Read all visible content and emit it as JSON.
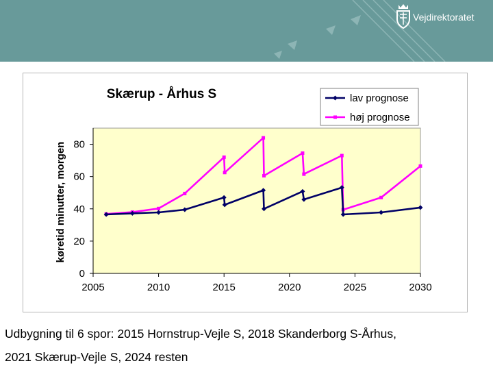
{
  "header": {
    "brand": "Vejdirektoratet",
    "logo_icon": "crown-shield-icon",
    "background_color": "#689a9a"
  },
  "chart_data": {
    "type": "line",
    "title": "Skærup - Århus S",
    "ylabel": "køretid minutter, morgen",
    "xlabel": "",
    "xlim": [
      2005,
      2030
    ],
    "ylim": [
      0,
      90
    ],
    "x_ticks": [
      "2005",
      "2010",
      "2015",
      "2020",
      "2025",
      "2030"
    ],
    "y_ticks": [
      "0",
      "20",
      "40",
      "60",
      "80"
    ],
    "grid": false,
    "legend_position": "top-right",
    "plot_background": "#ffffcc",
    "series": [
      {
        "name": "lav prognose",
        "color": "#000066",
        "marker": "diamond",
        "points": [
          [
            2006,
            36.5
          ],
          [
            2008,
            37.2
          ],
          [
            2010,
            37.8
          ],
          [
            2012,
            39.5
          ],
          [
            2015,
            47
          ],
          [
            2015.05,
            42.5
          ],
          [
            2018,
            51.5
          ],
          [
            2018.05,
            40
          ],
          [
            2021,
            50.8
          ],
          [
            2021.1,
            45.8
          ],
          [
            2024,
            53.2
          ],
          [
            2024.1,
            36.5
          ],
          [
            2027,
            37.8
          ],
          [
            2030,
            40.8
          ]
        ]
      },
      {
        "name": "høj prognose",
        "color": "#ff00ff",
        "marker": "square",
        "points": [
          [
            2006,
            36.8
          ],
          [
            2008,
            38
          ],
          [
            2010,
            40.2
          ],
          [
            2012,
            49.5
          ],
          [
            2015,
            72
          ],
          [
            2015.05,
            62.5
          ],
          [
            2018,
            84
          ],
          [
            2018.05,
            60.5
          ],
          [
            2021,
            74.5
          ],
          [
            2021.1,
            61.5
          ],
          [
            2024,
            73
          ],
          [
            2024.1,
            39.5
          ],
          [
            2027,
            47
          ],
          [
            2030,
            66.5
          ]
        ]
      }
    ]
  },
  "caption": {
    "line1": "Udbygning til 6 spor: 2015 Hornstrup-Vejle S, 2018 Skanderborg S-Århus,",
    "line2": "2021 Skærup-Vejle S, 2024 resten"
  }
}
